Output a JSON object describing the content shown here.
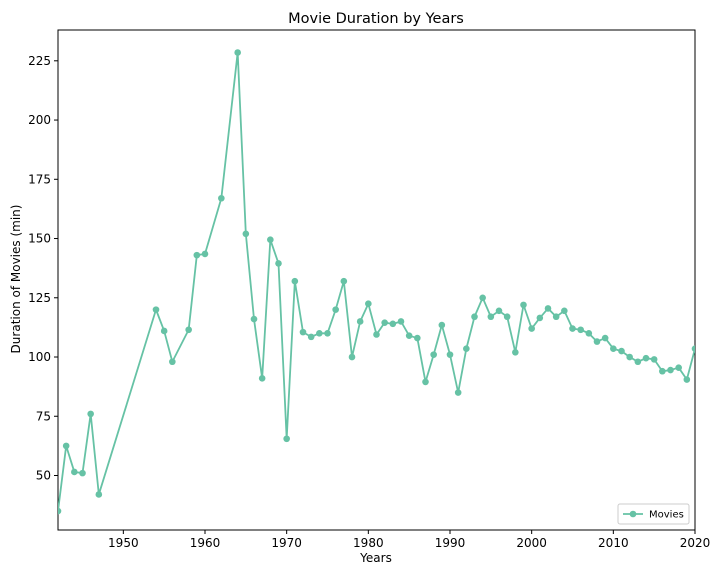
{
  "chart_data": {
    "type": "line",
    "title": "Movie Duration by Years",
    "xlabel": "Years",
    "ylabel": "Duration of Movies (min)",
    "xlim": [
      1942,
      2020
    ],
    "ylim": [
      27,
      238
    ],
    "xticks": [
      1950,
      1960,
      1970,
      1980,
      1990,
      2000,
      2010,
      2020
    ],
    "yticks": [
      50,
      75,
      100,
      125,
      150,
      175,
      200,
      225
    ],
    "grid": false,
    "legend_position": "bottom-right",
    "series": [
      {
        "name": "Movies",
        "color": "#66c2a5",
        "x": [
          1942,
          1943,
          1944,
          1945,
          1946,
          1947,
          1954,
          1955,
          1956,
          1958,
          1959,
          1960,
          1962,
          1964,
          1965,
          1966,
          1967,
          1968,
          1969,
          1970,
          1971,
          1972,
          1973,
          1974,
          1975,
          1976,
          1977,
          1978,
          1979,
          1980,
          1981,
          1982,
          1983,
          1984,
          1985,
          1986,
          1987,
          1988,
          1989,
          1990,
          1991,
          1992,
          1993,
          1994,
          1995,
          1996,
          1997,
          1998,
          1999,
          2000,
          2001,
          2002,
          2003,
          2004,
          2005,
          2006,
          2007,
          2008,
          2009,
          2010,
          2011,
          2012,
          2013,
          2014,
          2015,
          2016,
          2017,
          2018,
          2019,
          2020
        ],
        "y": [
          35,
          62.5,
          51.5,
          51,
          76,
          42,
          120,
          111,
          98,
          111.5,
          143,
          143.5,
          167,
          228.5,
          152,
          116,
          91,
          149.5,
          139.5,
          65.5,
          132,
          110.5,
          108.5,
          110,
          110,
          120,
          132,
          100,
          115,
          122.5,
          109.5,
          114.5,
          114,
          115,
          109,
          108,
          89.5,
          101,
          113.5,
          101,
          85,
          103.5,
          117,
          125,
          117,
          119.5,
          117,
          102,
          122,
          112,
          116.5,
          120.5,
          117,
          119.5,
          112,
          111.5,
          110,
          106.5,
          108,
          103.5,
          102.5,
          100,
          98,
          99.5,
          99,
          94,
          94.5,
          95.5,
          90.5,
          103.5
        ]
      }
    ]
  }
}
